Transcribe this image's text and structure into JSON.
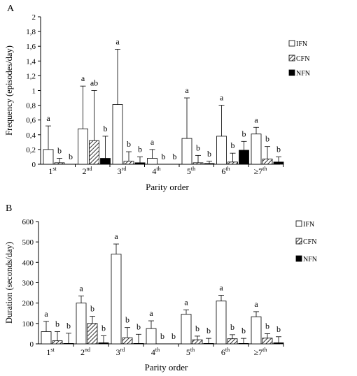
{
  "chart_data": [
    {
      "panel_label": "A",
      "type": "bar",
      "title": "",
      "xlabel": "Parity order",
      "ylabel": "Frequency (episodes/day)",
      "ylim": [
        0,
        2
      ],
      "yticks": [
        "0",
        "0,2",
        "0,4",
        "0,6",
        "0,8",
        "1",
        "1,2",
        "1,4",
        "1,6",
        "1,8",
        "2"
      ],
      "categories": [
        {
          "base": "1",
          "sup": "st"
        },
        {
          "base": "2",
          "sup": "nd"
        },
        {
          "base": "3",
          "sup": "rd"
        },
        {
          "base": "4",
          "sup": "th"
        },
        {
          "base": "5",
          "sup": "th"
        },
        {
          "base": "6",
          "sup": "th"
        },
        {
          "base": "≥7",
          "sup": "th"
        }
      ],
      "legend": {
        "placement": "top-right"
      },
      "series": [
        {
          "name": "IFN",
          "fill": "white",
          "values": [
            0.2,
            0.48,
            0.81,
            0.08,
            0.35,
            0.38,
            0.41
          ],
          "error": [
            0.32,
            0.58,
            0.75,
            0.12,
            0.55,
            0.42,
            0.09
          ],
          "letters": [
            "a",
            "a",
            "a",
            "a",
            "a",
            "a",
            "a"
          ]
        },
        {
          "name": "CFN",
          "fill": "hatch",
          "values": [
            0.02,
            0.32,
            0.04,
            0.0,
            0.02,
            0.03,
            0.07
          ],
          "error": [
            0.06,
            0.68,
            0.13,
            0.0,
            0.1,
            0.12,
            0.17
          ],
          "letters": [
            "b",
            "ab",
            "b",
            "b",
            "b",
            "b",
            "b"
          ]
        },
        {
          "name": "NFN",
          "fill": "black",
          "values": [
            0.0,
            0.08,
            0.02,
            0.0,
            0.01,
            0.19,
            0.03
          ],
          "error": [
            0.0,
            0.3,
            0.08,
            0.0,
            0.03,
            0.12,
            0.07
          ],
          "letters": [
            "b",
            "b",
            "b",
            "b",
            "b",
            "b",
            "b"
          ]
        }
      ]
    },
    {
      "panel_label": "B",
      "type": "bar",
      "title": "",
      "xlabel": "Parity order",
      "ylabel": "Duration (seconds/day)",
      "ylim": [
        0,
        600
      ],
      "yticks": [
        "0",
        "100",
        "200",
        "300",
        "400",
        "500",
        "600"
      ],
      "categories": [
        {
          "base": "1",
          "sup": "st"
        },
        {
          "base": "2",
          "sup": "nd"
        },
        {
          "base": "3",
          "sup": "rd"
        },
        {
          "base": "4",
          "sup": "th"
        },
        {
          "base": "5",
          "sup": "th"
        },
        {
          "base": "6",
          "sup": "th"
        },
        {
          "base": "≥7",
          "sup": "th"
        }
      ],
      "legend": {
        "placement": "top-right"
      },
      "series": [
        {
          "name": "IFN",
          "fill": "white",
          "values": [
            60,
            200,
            440,
            75,
            145,
            210,
            133
          ],
          "error": [
            50,
            35,
            50,
            38,
            22,
            28,
            25
          ],
          "letters": [
            "a",
            "a",
            "a",
            "a",
            "a",
            "a",
            "a"
          ]
        },
        {
          "name": "CFN",
          "fill": "hatch",
          "values": [
            15,
            100,
            30,
            0,
            20,
            25,
            28
          ],
          "error": [
            45,
            35,
            50,
            0,
            18,
            20,
            22
          ],
          "letters": [
            "b",
            "b",
            "b",
            "b",
            "b",
            "b",
            "b"
          ]
        },
        {
          "name": "NFN",
          "fill": "black",
          "values": [
            2,
            5,
            2,
            0,
            2,
            2,
            5
          ],
          "error": [
            50,
            35,
            45,
            0,
            25,
            25,
            30
          ],
          "letters": [
            "b",
            "b",
            "b",
            "b",
            "b",
            "b",
            "b"
          ]
        }
      ]
    }
  ]
}
